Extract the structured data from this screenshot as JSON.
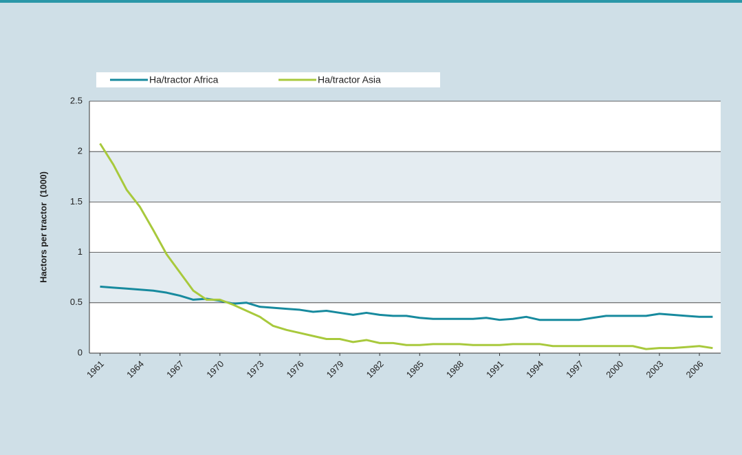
{
  "chart_data": {
    "type": "line",
    "y_label": "Hactors per tractor  (1000)",
    "x": [
      1961,
      1962,
      1963,
      1964,
      1965,
      1966,
      1967,
      1968,
      1969,
      1970,
      1971,
      1972,
      1973,
      1974,
      1975,
      1976,
      1977,
      1978,
      1979,
      1980,
      1981,
      1982,
      1983,
      1984,
      1985,
      1986,
      1987,
      1988,
      1989,
      1990,
      1991,
      1992,
      1993,
      1994,
      1995,
      1996,
      1997,
      1998,
      1999,
      2000,
      2001,
      2002,
      2003,
      2004,
      2005,
      2006,
      2007
    ],
    "series": [
      {
        "name": "Ha/tractor Africa",
        "color": "#178a9e",
        "values": [
          0.66,
          0.65,
          0.64,
          0.63,
          0.62,
          0.6,
          0.57,
          0.53,
          0.54,
          0.52,
          0.49,
          0.5,
          0.46,
          0.45,
          0.44,
          0.43,
          0.41,
          0.42,
          0.4,
          0.38,
          0.4,
          0.38,
          0.37,
          0.37,
          0.35,
          0.34,
          0.34,
          0.34,
          0.34,
          0.35,
          0.33,
          0.34,
          0.36,
          0.33,
          0.33,
          0.33,
          0.33,
          0.35,
          0.37,
          0.37,
          0.37,
          0.37,
          0.39,
          0.38,
          0.37,
          0.36,
          0.36
        ]
      },
      {
        "name": "Ha/tractor Asia",
        "color": "#a8c93c",
        "values": [
          2.08,
          1.87,
          1.62,
          1.45,
          1.22,
          0.98,
          0.8,
          0.62,
          0.53,
          0.53,
          0.48,
          0.42,
          0.36,
          0.27,
          0.23,
          0.2,
          0.17,
          0.14,
          0.14,
          0.11,
          0.13,
          0.1,
          0.1,
          0.08,
          0.08,
          0.09,
          0.09,
          0.09,
          0.08,
          0.08,
          0.08,
          0.09,
          0.09,
          0.09,
          0.07,
          0.07,
          0.07,
          0.07,
          0.07,
          0.07,
          0.07,
          0.04,
          0.05,
          0.05,
          0.06,
          0.07,
          0.05
        ]
      }
    ],
    "xlim": [
      1960.2,
      2007.6
    ],
    "xticks": [
      1961,
      1964,
      1967,
      1970,
      1973,
      1976,
      1979,
      1982,
      1985,
      1988,
      1991,
      1994,
      1997,
      2000,
      2003,
      2006
    ],
    "ylim": [
      0,
      2.5
    ],
    "yticks": [
      0,
      0.5,
      1,
      1.5,
      2,
      2.5
    ],
    "grid": true
  }
}
